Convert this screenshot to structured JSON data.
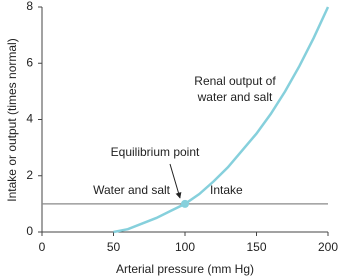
{
  "chart_data": {
    "type": "line",
    "xlabel": "Arterial pressure (mm Hg)",
    "ylabel": "Intake or output (times normal)",
    "xlim": [
      0,
      200
    ],
    "xticks": [
      0,
      50,
      100,
      150,
      200
    ],
    "ylim": [
      0,
      8
    ],
    "yticks": [
      0,
      2,
      4,
      6,
      8
    ],
    "series": [
      {
        "name": [
          "Renal output of",
          "water and salt"
        ],
        "color": "#86d0dc",
        "x": [
          50,
          60,
          70,
          80,
          90,
          100,
          110,
          120,
          130,
          140,
          150,
          160,
          170,
          180,
          190,
          200
        ],
        "values": [
          0,
          0.1,
          0.3,
          0.5,
          0.75,
          1,
          1.35,
          1.8,
          2.3,
          2.9,
          3.5,
          4.2,
          5,
          5.9,
          6.9,
          8
        ]
      },
      {
        "name": "Intake",
        "color": "#8a8a8a",
        "x": [
          0,
          200
        ],
        "values": [
          1,
          1
        ]
      }
    ],
    "points": [
      {
        "label": "Equilibrium point",
        "x": 100,
        "y": 1,
        "color": "#86d0dc"
      }
    ],
    "annotations": [
      "Water and salt"
    ]
  }
}
